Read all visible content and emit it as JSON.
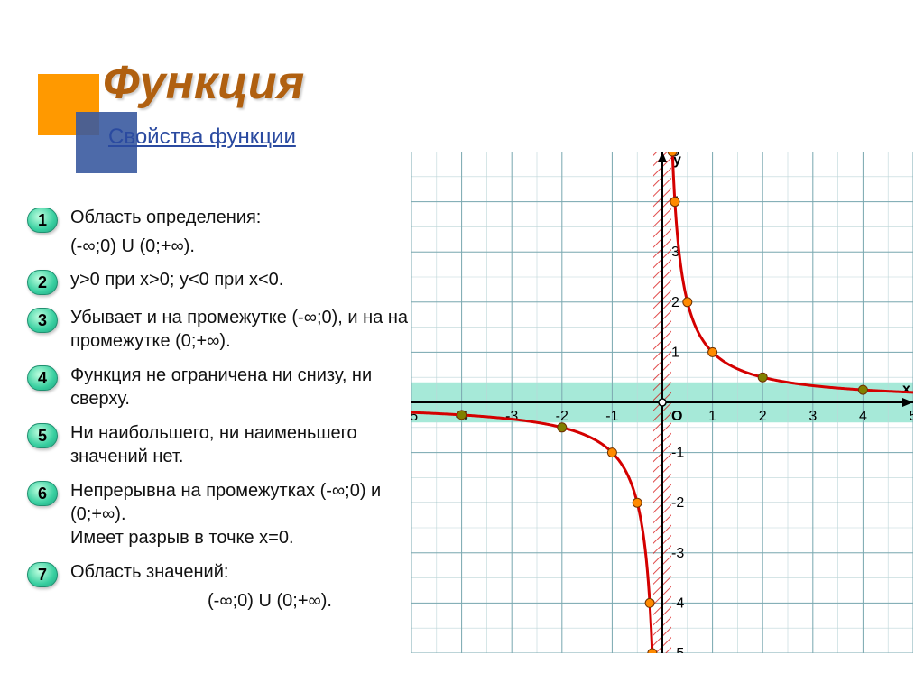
{
  "title": "Функция",
  "subtitle": "Свойства функции",
  "decor": {
    "orange": "#ff9900",
    "blue": "#3a5aa0"
  },
  "properties": [
    {
      "n": "1",
      "text": "Область определения:",
      "sub": "(-∞;0) U (0;+∞)."
    },
    {
      "n": "2",
      "text": "у>0 при х>0; у<0 при х<0."
    },
    {
      "n": "3",
      "text": "Убывает и на промежутке (-∞;0), и на на промежутке (0;+∞)."
    },
    {
      "n": "4",
      "text": "Функция не ограничена ни снизу, ни сверху."
    },
    {
      "n": "5",
      "text": "Ни наибольшего, ни наименьшего значений нет."
    },
    {
      "n": "6",
      "text": "Непрерывна на промежутках (-∞;0) и (0;+∞).\nИмеет разрыв в точке х=0."
    },
    {
      "n": "7",
      "text": "Область значений:",
      "sub_right": "(-∞;0) U (0;+∞)."
    }
  ],
  "chart": {
    "type": "line",
    "func": "1/x",
    "xlim": [
      -5,
      5
    ],
    "ylim": [
      -5,
      5
    ],
    "xtick_step": 1,
    "ytick_step": 1,
    "grid_major_color": "#7aa8b0",
    "grid_minor_color": "#bcd6d8",
    "background_color": "#ffffff",
    "axis_color": "#000000",
    "curve_color": "#d40000",
    "curve_width": 3,
    "asymptote_band_color": "#3acfa8",
    "asymptote_band_opacity": 0.45,
    "y_asymptote_hatch_color": "#d40000",
    "x_axis_label": "х",
    "y_axis_label": "у",
    "origin_label": "О",
    "tick_fontsize": 16,
    "points": [
      {
        "x": 0.2,
        "y": 5,
        "color": "#ff8a00"
      },
      {
        "x": 0.25,
        "y": 4,
        "color": "#ff8a00"
      },
      {
        "x": 0.5,
        "y": 2,
        "color": "#ff8a00"
      },
      {
        "x": 1,
        "y": 1,
        "color": "#ff8a00"
      },
      {
        "x": 2,
        "y": 0.5,
        "color": "#808000"
      },
      {
        "x": 4,
        "y": 0.25,
        "color": "#808000"
      },
      {
        "x": -0.2,
        "y": -5,
        "color": "#ff8a00"
      },
      {
        "x": -0.25,
        "y": -4,
        "color": "#ff8a00"
      },
      {
        "x": -0.5,
        "y": -2,
        "color": "#ff8a00"
      },
      {
        "x": -1,
        "y": -1,
        "color": "#ff8a00"
      },
      {
        "x": -2,
        "y": -0.5,
        "color": "#808000"
      },
      {
        "x": -4,
        "y": -0.25,
        "color": "#808000"
      }
    ]
  }
}
